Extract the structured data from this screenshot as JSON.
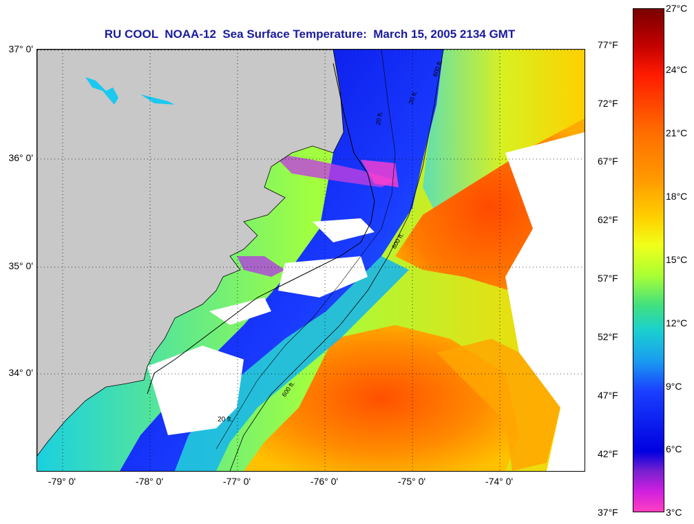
{
  "title": "RU COOL  NOAA-12  Sea Surface Temperature:  March 15, 2005 2134 GMT",
  "map": {
    "x_ticks": [
      "-79° 0'",
      "-78° 0'",
      "-77° 0'",
      "-76° 0'",
      "-75° 0'",
      "-74° 0'"
    ],
    "y_ticks": [
      "37° 0'",
      "36° 0'",
      "35° 0'",
      "34° 0'"
    ],
    "contour_labels": [
      "20 ft.",
      "20 ft.",
      "600 ft.",
      "600 ft.",
      "600 ft.",
      "20 ft."
    ],
    "grid": "dotted",
    "colors": {
      "land": "#c8c8c8",
      "cloud": "#ffffff",
      "cold": "#1a1aff",
      "warm": "#ff6a00"
    }
  },
  "colorbar": {
    "celsius": [
      "27°C",
      "24°C",
      "21°C",
      "18°C",
      "15°C",
      "12°C",
      "9°C",
      "6°C",
      "3°C"
    ],
    "fahrenheit": [
      "77°F",
      "72°F",
      "67°F",
      "62°F",
      "57°F",
      "52°F",
      "47°F",
      "42°F",
      "37°F"
    ]
  }
}
